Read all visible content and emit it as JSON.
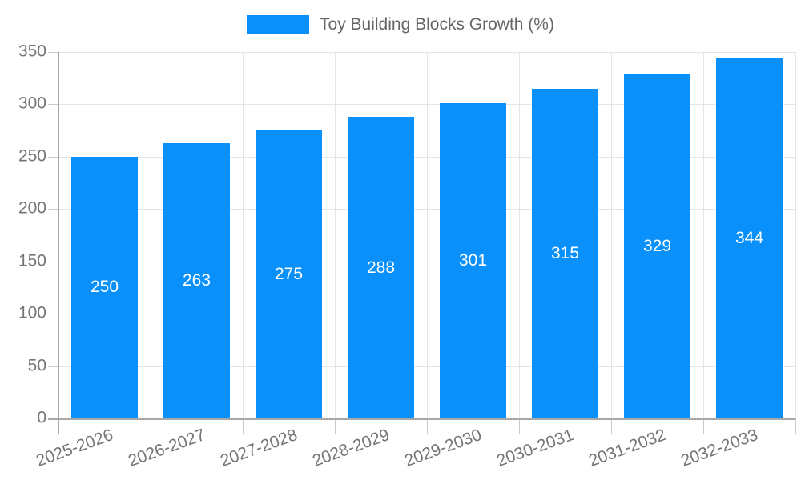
{
  "chart_data": {
    "type": "bar",
    "title": "",
    "legend": "Toy Building Blocks Growth (%)",
    "legend_position": "top-center",
    "categories": [
      "2025-2026",
      "2026-2027",
      "2027-2028",
      "2028-2029",
      "2029-2030",
      "2030-2031",
      "2031-2032",
      "2032-2033"
    ],
    "values": [
      250,
      263,
      275,
      288,
      301,
      315,
      329,
      344
    ],
    "xlabel": "",
    "ylabel": "",
    "ylim": [
      0,
      350
    ],
    "ytick_step": 50,
    "grid": true,
    "x_label_rotation_deg": -20,
    "colors": {
      "bar": "#0a90fa",
      "value_label": "#ffffff",
      "axis_label": "#757575",
      "legend_text": "#666666",
      "gridline": "#e5e5e5",
      "tick_mark": "#c9c9c9",
      "spine": "#a8a8a8",
      "background": "#ffffff"
    }
  }
}
